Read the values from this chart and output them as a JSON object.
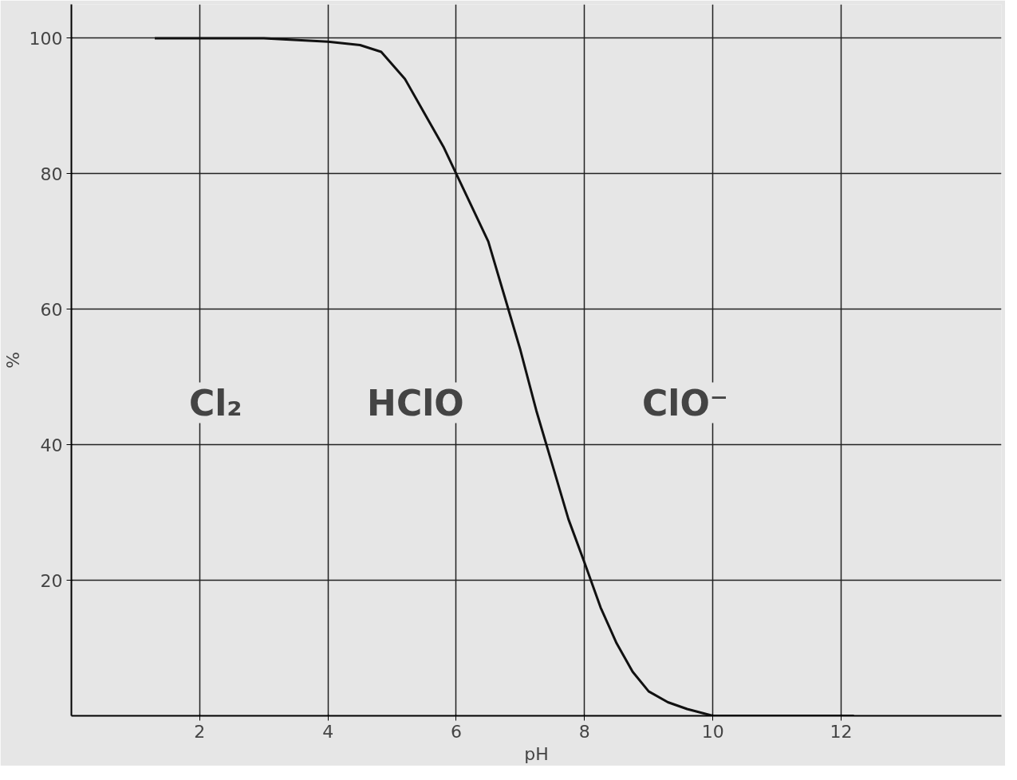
{
  "chart_data": {
    "type": "line",
    "xlabel": "pH",
    "ylabel": "%",
    "x": [
      1.3,
      2,
      3,
      4,
      4.5,
      4.83,
      5.2,
      5.5,
      5.8,
      6,
      6.25,
      6.5,
      6.75,
      7,
      7.25,
      7.5,
      7.75,
      8,
      8.25,
      8.5,
      8.75,
      9,
      9.3,
      9.6,
      10,
      11,
      12.2
    ],
    "series": [
      {
        "color": "#111111",
        "values": [
          100,
          100,
          100,
          99.5,
          99,
          98,
          94,
          89,
          84,
          80,
          75,
          70,
          62,
          54,
          45,
          37,
          29,
          22.6,
          16,
          10.7,
          6.5,
          3.6,
          2,
          1,
          0,
          0,
          0
        ]
      }
    ],
    "xlim": [
      0,
      14.5
    ],
    "ylim": [
      0,
      105
    ],
    "xticks": [
      2,
      4,
      6,
      8,
      10,
      12
    ],
    "yticks": [
      20,
      40,
      60,
      80,
      100
    ],
    "grid": true,
    "marker": "none",
    "line_style": "solid",
    "annotations": [
      "Cl₂",
      "HClO",
      "ClO⁻"
    ]
  }
}
